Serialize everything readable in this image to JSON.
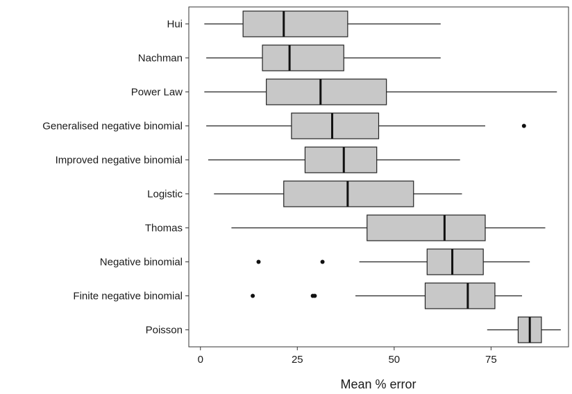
{
  "chart_data": {
    "type": "boxplot",
    "orientation": "horizontal",
    "xlabel": "Mean % error",
    "xlim": [
      -3,
      95
    ],
    "xticks": [
      0,
      25,
      50,
      75
    ],
    "grid": false,
    "legend": "none",
    "box_fill": "#c8c8c8",
    "categories": [
      "Hui",
      "Nachman",
      "Power Law",
      "Generalised negative binomial",
      "Improved negative binomial",
      "Logistic",
      "Thomas",
      "Negative binomial",
      "Finite negative binomial",
      "Poisson"
    ],
    "boxes": [
      {
        "min": 1,
        "q1": 11,
        "median": 21.5,
        "q3": 38,
        "max": 62,
        "outliers": []
      },
      {
        "min": 1.5,
        "q1": 16,
        "median": 23,
        "q3": 37,
        "max": 62,
        "outliers": []
      },
      {
        "min": 1,
        "q1": 17,
        "median": 31,
        "q3": 48,
        "max": 92,
        "outliers": []
      },
      {
        "min": 1.5,
        "q1": 23.5,
        "median": 34,
        "q3": 46,
        "max": 73.5,
        "outliers": [
          83.5
        ]
      },
      {
        "min": 2,
        "q1": 27,
        "median": 37,
        "q3": 45.5,
        "max": 67,
        "outliers": []
      },
      {
        "min": 3.5,
        "q1": 21.5,
        "median": 38,
        "q3": 55,
        "max": 67.5,
        "outliers": []
      },
      {
        "min": 8,
        "q1": 43,
        "median": 63,
        "q3": 73.5,
        "max": 89,
        "outliers": []
      },
      {
        "min": 41,
        "q1": 58.5,
        "median": 65,
        "q3": 73,
        "max": 85,
        "outliers": [
          15,
          31.5
        ]
      },
      {
        "min": 40,
        "q1": 58,
        "median": 69,
        "q3": 76,
        "max": 83,
        "outliers": [
          13.5,
          29,
          29.5
        ]
      },
      {
        "min": 74,
        "q1": 82,
        "median": 85,
        "q3": 88,
        "max": 93,
        "outliers": []
      }
    ]
  }
}
